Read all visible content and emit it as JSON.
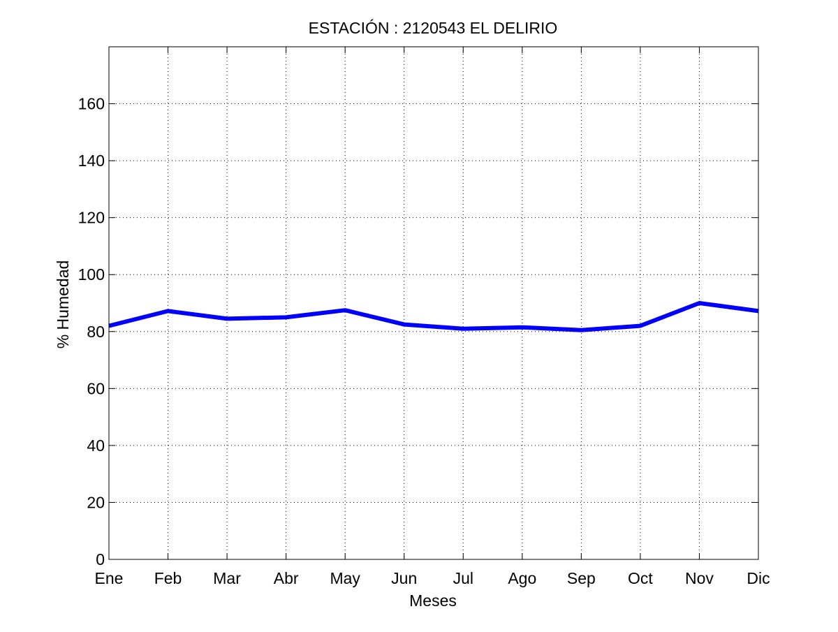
{
  "chart_data": {
    "type": "line",
    "title": "ESTACIÓN :  2120543  EL DELIRIO",
    "xlabel": "Meses",
    "ylabel": "% Humedad",
    "categories": [
      "Ene",
      "Feb",
      "Mar",
      "Abr",
      "May",
      "Jun",
      "Jul",
      "Ago",
      "Sep",
      "Oct",
      "Nov",
      "Dic"
    ],
    "series": [
      {
        "name": "",
        "color": "#0000ff",
        "values": [
          82,
          87.2,
          84.5,
          85,
          87.5,
          82.5,
          81,
          81.5,
          80.5,
          82,
          90,
          87.2
        ]
      }
    ],
    "ylim": [
      0,
      180
    ],
    "yticks": [
      0,
      20,
      40,
      60,
      80,
      100,
      120,
      140,
      160
    ],
    "grid": true,
    "legend": "none"
  }
}
